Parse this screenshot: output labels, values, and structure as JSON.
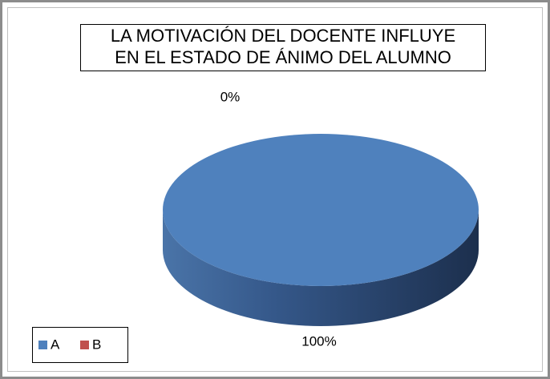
{
  "chart_data": {
    "type": "pie3d",
    "title": [
      "LA MOTIVACIÓN DEL DOCENTE INFLUYE",
      "EN EL ESTADO DE ÁNIMO DEL ALUMNO"
    ],
    "categories": [
      "A",
      "B"
    ],
    "values": [
      100,
      0
    ],
    "value_labels": [
      "100%",
      "0%"
    ],
    "colors": [
      "#4f81bd",
      "#c0504d"
    ],
    "legend": "bottom-left"
  }
}
